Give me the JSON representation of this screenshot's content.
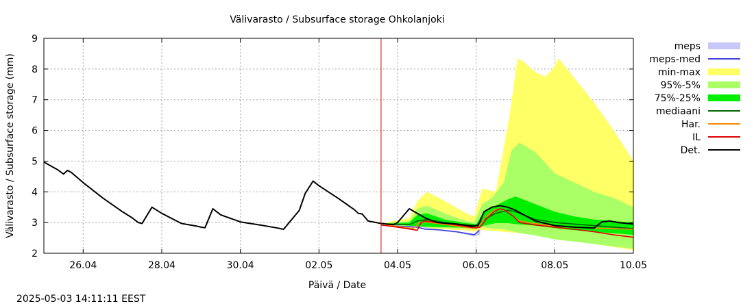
{
  "chart_data": {
    "type": "line",
    "title": "Välivarasto / Subsurface storage  Ohkolanjoki",
    "xlabel": "Päivä / Date",
    "ylabel": "Välivarasto / Subsurface storage (mm)",
    "x_unit": "days since 25.04 00:00",
    "xlim": [
      0,
      15
    ],
    "ylim": [
      2,
      9
    ],
    "yticks": [
      2,
      3,
      4,
      5,
      6,
      7,
      8,
      9
    ],
    "xticks": [
      {
        "x": 1,
        "label": "26.04"
      },
      {
        "x": 3,
        "label": "28.04"
      },
      {
        "x": 5,
        "label": "30.04"
      },
      {
        "x": 7,
        "label": "02.05"
      },
      {
        "x": 9,
        "label": "04.05"
      },
      {
        "x": 11,
        "label": "06.05"
      },
      {
        "x": 13,
        "label": "08.05"
      },
      {
        "x": 15,
        "label": "10.05"
      }
    ],
    "grid": true,
    "now_line": 8.58,
    "legend_position": "right",
    "series": [
      {
        "name": "meps",
        "kind": "band",
        "color": "#c8c8f8",
        "x": [
          8.7,
          9.5,
          9.95,
          10.5,
          10.95,
          11.1
        ],
        "lower": [
          2.88,
          2.83,
          2.74,
          2.67,
          2.55,
          2.6
        ],
        "upper": [
          2.92,
          2.88,
          2.8,
          2.72,
          2.63,
          2.8
        ]
      },
      {
        "name": "meps-med",
        "kind": "line",
        "color": "#4040e0",
        "x": [
          8.7,
          9.5,
          9.7,
          10.0,
          10.5,
          10.95,
          11.08
        ],
        "y": [
          2.9,
          2.85,
          2.78,
          2.77,
          2.7,
          2.6,
          2.75
        ]
      },
      {
        "name": "min-max",
        "kind": "band",
        "color": "#ffff66",
        "x": [
          8.7,
          9.3,
          9.5,
          9.75,
          10.2,
          10.75,
          10.95,
          11.15,
          11.5,
          11.85,
          12.05,
          12.2,
          12.5,
          12.75,
          12.95,
          13.1,
          13.5,
          14.0,
          14.5,
          15.0
        ],
        "lower": [
          2.92,
          2.87,
          2.83,
          2.8,
          2.78,
          2.74,
          2.7,
          2.76,
          2.72,
          2.68,
          2.66,
          2.64,
          2.6,
          2.56,
          2.52,
          2.5,
          2.4,
          2.3,
          2.2,
          2.1
        ],
        "upper": [
          3.0,
          3.15,
          3.7,
          4.0,
          3.7,
          3.3,
          3.2,
          4.1,
          4.0,
          6.5,
          8.35,
          8.25,
          7.9,
          7.75,
          8.0,
          8.35,
          7.7,
          6.9,
          6.0,
          5.0
        ]
      },
      {
        "name": "95%-5%",
        "kind": "band",
        "color": "#aaff66",
        "x": [
          8.7,
          9.3,
          9.5,
          9.75,
          10.2,
          10.75,
          10.95,
          11.15,
          11.4,
          11.7,
          11.9,
          12.1,
          12.5,
          13.0,
          13.5,
          14.0,
          14.5,
          15.0
        ],
        "lower": [
          2.93,
          2.88,
          2.86,
          2.84,
          2.82,
          2.8,
          2.79,
          2.85,
          2.8,
          2.78,
          2.72,
          2.66,
          2.58,
          2.45,
          2.38,
          2.3,
          2.22,
          2.15
        ],
        "upper": [
          2.98,
          3.05,
          3.45,
          3.55,
          3.3,
          3.05,
          3.0,
          3.6,
          3.8,
          4.3,
          5.35,
          5.6,
          5.3,
          4.6,
          4.3,
          4.0,
          3.8,
          3.5
        ]
      },
      {
        "name": "75%-25%",
        "kind": "band",
        "color": "#00ee00",
        "x": [
          8.7,
          9.3,
          9.5,
          9.75,
          10.2,
          10.75,
          11.0,
          11.2,
          11.5,
          11.8,
          12.0,
          12.5,
          13.0,
          13.5,
          14.0,
          14.5,
          15.0
        ],
        "lower": [
          2.94,
          2.9,
          2.88,
          2.86,
          2.85,
          2.83,
          2.82,
          2.9,
          2.98,
          2.98,
          2.95,
          2.9,
          2.82,
          2.75,
          2.7,
          2.65,
          2.6
        ],
        "upper": [
          2.97,
          3.0,
          3.25,
          3.3,
          3.1,
          2.98,
          2.95,
          3.35,
          3.55,
          3.75,
          3.85,
          3.6,
          3.35,
          3.2,
          3.1,
          3.05,
          3.0
        ]
      },
      {
        "name": "mediaani",
        "kind": "line",
        "color": "#006600",
        "x": [
          8.7,
          9.3,
          9.5,
          9.75,
          10.2,
          10.75,
          11.0,
          11.2,
          11.5,
          11.8,
          12.0,
          12.5,
          13.0,
          13.5,
          14.0,
          14.5,
          15.0
        ],
        "y": [
          2.95,
          2.93,
          3.05,
          3.1,
          3.0,
          2.92,
          2.9,
          3.1,
          3.3,
          3.4,
          3.35,
          3.1,
          3.0,
          2.95,
          2.9,
          2.85,
          2.8
        ]
      },
      {
        "name": "Har.",
        "kind": "line",
        "color": "#ff8800",
        "x": [
          8.7,
          9.4,
          9.55,
          9.7,
          10.3,
          10.9,
          11.05,
          11.25,
          11.45,
          11.6,
          11.75,
          12.1,
          12.6,
          13.0,
          13.5,
          14.0,
          14.5,
          15.0
        ],
        "y": [
          2.92,
          2.8,
          3.0,
          3.02,
          2.92,
          2.82,
          2.85,
          3.2,
          3.4,
          3.45,
          3.38,
          3.05,
          2.95,
          2.88,
          2.85,
          2.82,
          2.8,
          2.78
        ]
      },
      {
        "name": "IL",
        "kind": "line",
        "color": "#dd0000",
        "x": [
          8.58,
          9.0,
          9.5,
          9.6,
          9.7,
          10.0,
          10.5,
          10.85,
          11.0,
          11.1,
          11.25,
          11.45,
          11.6,
          11.7,
          11.95,
          12.1,
          12.5,
          13.0,
          13.5,
          14.0,
          14.5,
          15.0
        ],
        "y": [
          2.92,
          2.85,
          2.75,
          3.0,
          3.05,
          3.0,
          2.92,
          2.85,
          2.82,
          2.85,
          3.1,
          3.35,
          3.45,
          3.42,
          3.2,
          3.0,
          2.92,
          2.85,
          2.78,
          2.7,
          2.6,
          2.52
        ]
      },
      {
        "name": "Det.",
        "kind": "line",
        "color": "#000000",
        "x": [
          0.0,
          0.35,
          0.5,
          0.6,
          0.7,
          1.0,
          1.5,
          2.0,
          2.25,
          2.4,
          2.5,
          2.75,
          3.0,
          3.5,
          3.9,
          4.0,
          4.1,
          4.3,
          4.5,
          5.0,
          5.5,
          5.95,
          6.1,
          6.5,
          6.65,
          6.85,
          7.0,
          7.5,
          7.9,
          8.0,
          8.1,
          8.25,
          8.58,
          8.9,
          9.0,
          9.3,
          9.5,
          9.7,
          10.0,
          10.5,
          10.9,
          11.05,
          11.2,
          11.4,
          11.6,
          11.8,
          12.0,
          12.5,
          13.0,
          13.5,
          14.0,
          14.2,
          14.4,
          14.6,
          15.0
        ],
        "y": [
          4.97,
          4.72,
          4.58,
          4.7,
          4.63,
          4.3,
          3.8,
          3.35,
          3.15,
          3.0,
          2.97,
          3.5,
          3.3,
          2.97,
          2.88,
          2.85,
          2.83,
          3.45,
          3.25,
          3.02,
          2.92,
          2.82,
          2.78,
          3.4,
          3.95,
          4.35,
          4.2,
          3.78,
          3.42,
          3.3,
          3.28,
          3.05,
          2.97,
          2.93,
          3.0,
          3.45,
          3.3,
          3.15,
          3.0,
          2.95,
          2.88,
          2.9,
          3.35,
          3.5,
          3.55,
          3.5,
          3.4,
          3.05,
          2.9,
          2.85,
          2.82,
          3.02,
          3.05,
          3.0,
          2.95
        ]
      }
    ]
  },
  "footer": {
    "timestamp": "2025-05-03 14:11:11 EEST"
  }
}
